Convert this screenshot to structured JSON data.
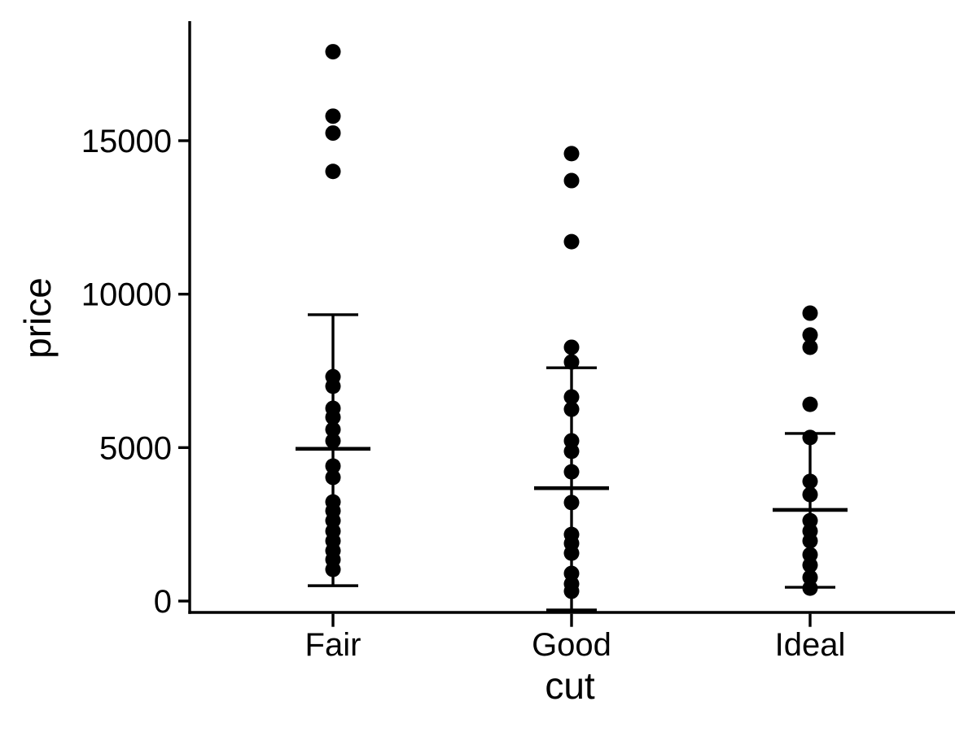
{
  "chart_data": {
    "type": "scatter",
    "subtype": "strip-plot-with-mean-sd-errorbars",
    "title": "",
    "xlabel": "cut",
    "ylabel": "price",
    "categories": [
      "Fair",
      "Good",
      "Ideal"
    ],
    "ytick_labels": [
      "0",
      "5000",
      "10000",
      "15000"
    ],
    "ytick_values": [
      0,
      5000,
      10000,
      15000
    ],
    "ylim": [
      -400,
      18900
    ],
    "grid": false,
    "legend": false,
    "point_color": "#000000",
    "line_color": "#000000",
    "background": "#ffffff",
    "series": [
      {
        "name": "Fair",
        "mean": 4960,
        "lower": 500,
        "upper": 9330,
        "points": [
          17900,
          15800,
          15250,
          14000,
          7310,
          7000,
          6280,
          5990,
          5590,
          5220,
          4400,
          4030,
          3230,
          2940,
          2620,
          2280,
          1960,
          1640,
          1350,
          1030
        ]
      },
      {
        "name": "Good",
        "mean": 3680,
        "lower": -290,
        "upper": 7600,
        "points": [
          14580,
          13700,
          11710,
          8270,
          7790,
          6650,
          6250,
          5220,
          4880,
          4210,
          3210,
          2170,
          1880,
          1560,
          900,
          560,
          320
        ]
      },
      {
        "name": "Ideal",
        "mean": 2970,
        "lower": 450,
        "upper": 5460,
        "points": [
          9380,
          8670,
          8270,
          6410,
          5330,
          3900,
          3470,
          2620,
          2280,
          1960,
          1510,
          1170,
          770,
          420
        ]
      }
    ]
  }
}
